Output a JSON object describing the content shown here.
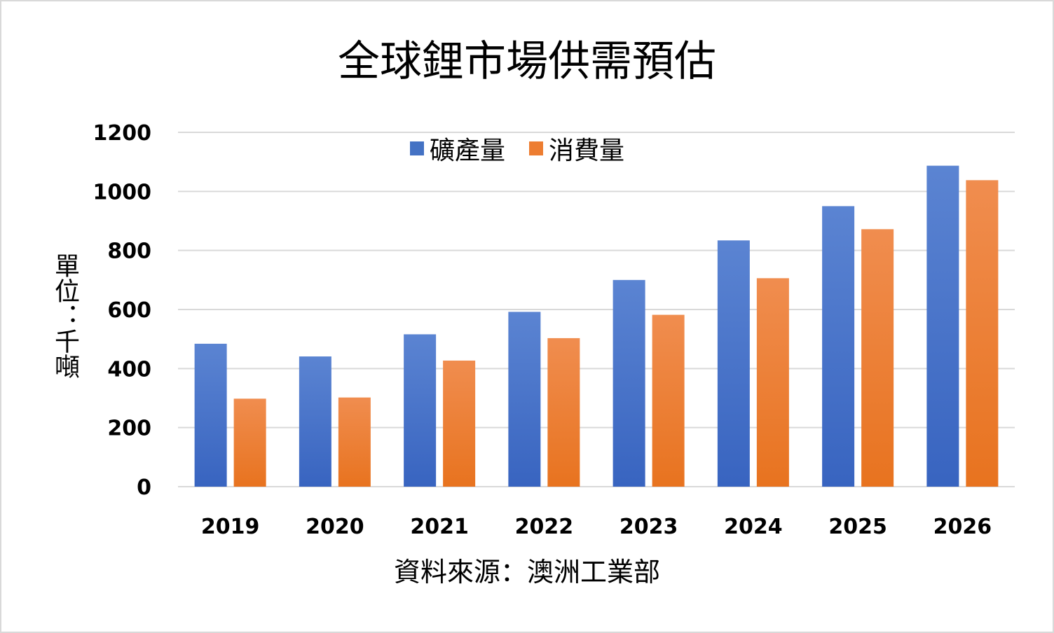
{
  "chart_data": {
    "type": "bar",
    "title": "全球鋰市場供需預估",
    "ylabel": "單位：千噸",
    "source": "資料來源：澳洲工業部",
    "categories": [
      "2019",
      "2020",
      "2021",
      "2022",
      "2023",
      "2024",
      "2025",
      "2026"
    ],
    "series": [
      {
        "name": "礦產量",
        "color": "#4472c4",
        "values": [
          484,
          441,
          516,
          592,
          700,
          834,
          950,
          1087
        ]
      },
      {
        "name": "消費量",
        "color": "#ed7d31",
        "values": [
          298,
          302,
          427,
          503,
          582,
          706,
          872,
          1038
        ]
      }
    ],
    "ylim": [
      0,
      1200
    ],
    "yticks": [
      "0",
      "200",
      "400",
      "600",
      "800",
      "1000",
      "1200"
    ],
    "grid": true,
    "legend_position": "top-center"
  }
}
